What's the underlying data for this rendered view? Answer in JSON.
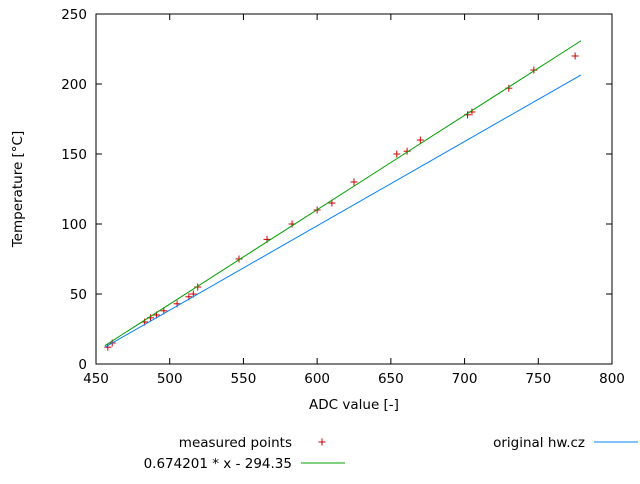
{
  "chart_data": {
    "type": "scatter",
    "title": "",
    "xlabel": "ADC value [-]",
    "ylabel": "Temperature [°C]",
    "xlim": [
      450,
      800
    ],
    "ylim": [
      0,
      250
    ],
    "xticks": [
      450,
      500,
      550,
      600,
      650,
      700,
      750,
      800
    ],
    "yticks": [
      0,
      50,
      100,
      150,
      200,
      250
    ],
    "grid": false,
    "legend_position": "below",
    "frame_color": "#000000",
    "series": [
      {
        "name": "measured points",
        "kind": "points",
        "marker": "plus",
        "color": "#cc0000",
        "points": [
          [
            458,
            12
          ],
          [
            461,
            15
          ],
          [
            483,
            30
          ],
          [
            487,
            33
          ],
          [
            491,
            35
          ],
          [
            496,
            38
          ],
          [
            505,
            43
          ],
          [
            513,
            48
          ],
          [
            516,
            50
          ],
          [
            519,
            55
          ],
          [
            547,
            75
          ],
          [
            566,
            89
          ],
          [
            583,
            100
          ],
          [
            600,
            110
          ],
          [
            610,
            115
          ],
          [
            625,
            130
          ],
          [
            654,
            150
          ],
          [
            661,
            152
          ],
          [
            670,
            160
          ],
          [
            702,
            178
          ],
          [
            705,
            180
          ],
          [
            730,
            197
          ],
          [
            747,
            210
          ],
          [
            775,
            220
          ]
        ]
      },
      {
        "name": "0.674201 * x - 294.35",
        "kind": "line",
        "color": "#00a000",
        "slope": 0.674201,
        "intercept": -294.35,
        "x": [
          456,
          779
        ],
        "y": [
          13.1,
          230.9
        ]
      },
      {
        "name": "original hw.cz",
        "kind": "line",
        "color": "#0080ff",
        "x": [
          456,
          779
        ],
        "y": [
          12.0,
          206.5
        ]
      }
    ]
  }
}
